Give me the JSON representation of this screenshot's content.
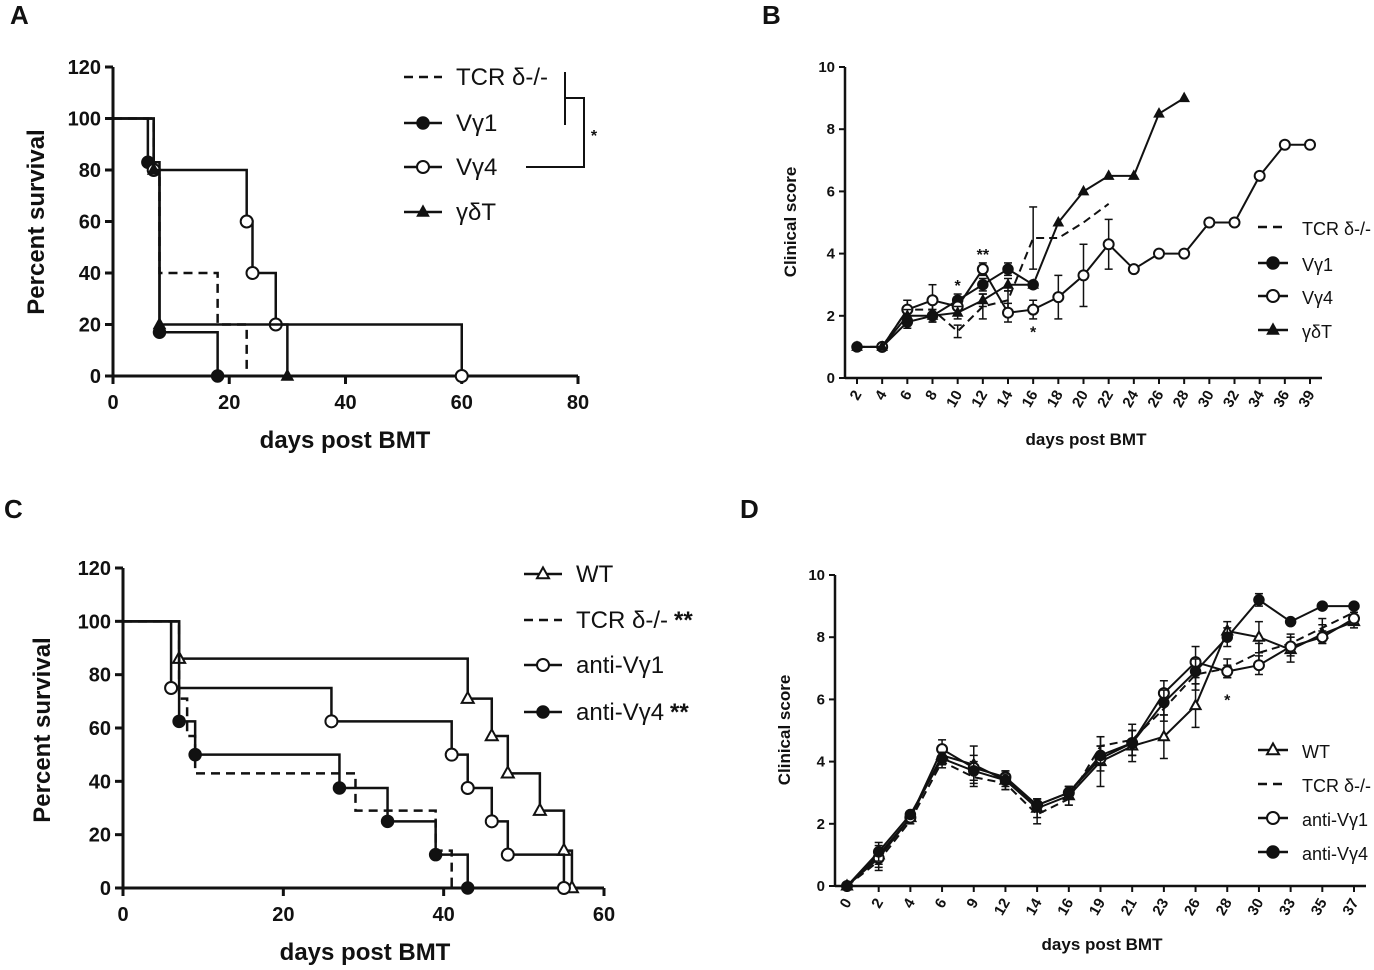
{
  "chart_data": [
    {
      "panel": "A",
      "type": "line",
      "subtype": "kaplan-meier",
      "xlabel": "days post BMT",
      "ylabel": "Percent survival",
      "xlim": [
        0,
        80
      ],
      "ylim": [
        0,
        120
      ],
      "xticks": [
        "0",
        "20",
        "40",
        "60",
        "80"
      ],
      "yticks": [
        "0",
        "20",
        "40",
        "60",
        "80",
        "100",
        "120"
      ],
      "legend": [
        "TCR δ-/-",
        "Vγ1",
        "Vγ4",
        "γδT"
      ],
      "significance": "*",
      "series": [
        {
          "name": "TCR δ-/-",
          "style": "dashed",
          "steps": [
            [
              0,
              100
            ],
            [
              7,
              100
            ],
            [
              7,
              80
            ],
            [
              8,
              80
            ],
            [
              8,
              40
            ],
            [
              18,
              40
            ],
            [
              18,
              20
            ],
            [
              23,
              20
            ],
            [
              23,
              0
            ],
            [
              30,
              0
            ]
          ]
        },
        {
          "name": "Vγ1",
          "style": "solid-filled-circle",
          "steps": [
            [
              0,
              100
            ],
            [
              6,
              100
            ],
            [
              6,
              83
            ],
            [
              8,
              83
            ],
            [
              8,
              17
            ],
            [
              18,
              17
            ],
            [
              18,
              0
            ],
            [
              20,
              0
            ]
          ],
          "markers": [
            [
              6,
              83
            ],
            [
              8,
              17
            ],
            [
              18,
              0
            ]
          ]
        },
        {
          "name": "Vγ4",
          "style": "solid-open-circle",
          "steps": [
            [
              0,
              100
            ],
            [
              7,
              100
            ],
            [
              7,
              80
            ],
            [
              23,
              80
            ],
            [
              23,
              60
            ],
            [
              24,
              60
            ],
            [
              24,
              40
            ],
            [
              28,
              40
            ],
            [
              28,
              20
            ],
            [
              60,
              20
            ],
            [
              60,
              0
            ]
          ],
          "markers": [
            [
              7,
              80
            ],
            [
              23,
              60
            ],
            [
              24,
              40
            ],
            [
              28,
              20
            ],
            [
              60,
              0
            ]
          ]
        },
        {
          "name": "γδT",
          "style": "solid-triangle",
          "steps": [
            [
              0,
              100
            ],
            [
              7,
              100
            ],
            [
              7,
              80
            ],
            [
              8,
              80
            ],
            [
              8,
              20
            ],
            [
              30,
              20
            ],
            [
              30,
              0
            ]
          ],
          "markers": [
            [
              7,
              80
            ],
            [
              8,
              20
            ],
            [
              30,
              0
            ]
          ]
        }
      ]
    },
    {
      "panel": "B",
      "type": "line",
      "xlabel": "days post BMT",
      "ylabel": "Clinical score",
      "ylim": [
        0,
        10
      ],
      "categories": [
        "2",
        "4",
        "6",
        "8",
        "10",
        "12",
        "14",
        "16",
        "18",
        "20",
        "22",
        "24",
        "26",
        "28",
        "30",
        "32",
        "34",
        "36",
        "39"
      ],
      "yticks": [
        "0",
        "2",
        "4",
        "6",
        "8",
        "10"
      ],
      "legend": [
        "TCR δ-/-",
        "Vγ1",
        "Vγ4",
        "γδT"
      ],
      "annotations": [
        {
          "text": "**",
          "category": "12",
          "y": 3.8
        },
        {
          "text": "*",
          "category": "10",
          "y": 2.8
        },
        {
          "text": "*",
          "category": "16",
          "y": 1.3
        }
      ],
      "series": [
        {
          "name": "TCR δ-/-",
          "style": "dashed",
          "values": [
            1,
            1,
            2.2,
            2.2,
            1.5,
            2.3,
            2.5,
            4.5,
            4.5,
            5,
            5.6,
            null,
            null,
            null,
            null,
            null,
            null,
            null,
            null
          ],
          "errors": [
            0,
            0,
            0.3,
            0.3,
            0.2,
            0.4,
            0.3,
            1,
            0,
            0,
            0,
            0,
            0,
            0,
            0,
            0,
            0,
            0,
            0
          ]
        },
        {
          "name": "Vγ1",
          "style": "filled-circle",
          "values": [
            1,
            1,
            1.8,
            2,
            2.5,
            3,
            3.5,
            3,
            null,
            null,
            null,
            null,
            null,
            null,
            null,
            null,
            null,
            null,
            null
          ],
          "errors": [
            0,
            0,
            0.2,
            0.2,
            0.2,
            0.2,
            0.2,
            0,
            0,
            0,
            0,
            0,
            0,
            0,
            0,
            0,
            0,
            0,
            0
          ]
        },
        {
          "name": "Vγ4",
          "style": "open-circle",
          "values": [
            null,
            1,
            2.2,
            2.5,
            2.3,
            3.5,
            2.1,
            2.2,
            2.6,
            3.3,
            4.3,
            3.5,
            4,
            4,
            5,
            5,
            6.5,
            7.5,
            7.5
          ],
          "errors": [
            0,
            0,
            0.3,
            0.5,
            0.3,
            0.2,
            0.3,
            0.3,
            0.7,
            1,
            0.8,
            0,
            0,
            0,
            0,
            0,
            0,
            0,
            0
          ]
        },
        {
          "name": "γδT",
          "style": "triangle",
          "values": [
            1,
            1,
            2,
            2,
            2.1,
            2.5,
            3,
            3,
            5,
            6,
            6.5,
            6.5,
            8.5,
            9,
            null,
            null,
            null,
            null,
            null
          ],
          "errors": [
            0,
            0,
            0.2,
            0.2,
            0.2,
            0.2,
            0.2,
            0,
            0,
            0,
            0,
            0,
            0,
            0,
            0,
            0,
            0,
            0,
            0
          ]
        }
      ]
    },
    {
      "panel": "C",
      "type": "line",
      "subtype": "kaplan-meier",
      "xlabel": "days post BMT",
      "ylabel": "Percent survival",
      "xlim": [
        0,
        60
      ],
      "ylim": [
        0,
        120
      ],
      "xticks": [
        "0",
        "20",
        "40",
        "60"
      ],
      "yticks": [
        "0",
        "20",
        "40",
        "60",
        "80",
        "100",
        "120"
      ],
      "legend": [
        "WT",
        "TCR δ-/-",
        "anti-Vγ1",
        "anti-Vγ4"
      ],
      "legend_annotations": [
        "",
        "**",
        "",
        "**"
      ],
      "series": [
        {
          "name": "WT",
          "style": "solid-open-triangle",
          "steps": [
            [
              0,
              100
            ],
            [
              7,
              100
            ],
            [
              7,
              86
            ],
            [
              43,
              86
            ],
            [
              43,
              71
            ],
            [
              46,
              71
            ],
            [
              46,
              57
            ],
            [
              48,
              57
            ],
            [
              48,
              43
            ],
            [
              52,
              43
            ],
            [
              52,
              29
            ],
            [
              55,
              29
            ],
            [
              55,
              14
            ],
            [
              56,
              14
            ],
            [
              56,
              0
            ]
          ],
          "markers": [
            [
              7,
              86
            ],
            [
              43,
              71
            ],
            [
              46,
              57
            ],
            [
              48,
              43
            ],
            [
              52,
              29
            ],
            [
              55,
              14
            ],
            [
              56,
              0
            ]
          ]
        },
        {
          "name": "TCR δ-/-",
          "style": "dashed",
          "steps": [
            [
              0,
              100
            ],
            [
              7,
              100
            ],
            [
              7,
              71
            ],
            [
              8,
              71
            ],
            [
              8,
              57
            ],
            [
              9,
              57
            ],
            [
              9,
              43
            ],
            [
              29,
              43
            ],
            [
              29,
              29
            ],
            [
              39,
              29
            ],
            [
              39,
              14
            ],
            [
              41,
              14
            ],
            [
              41,
              0
            ]
          ]
        },
        {
          "name": "anti-Vγ1",
          "style": "solid-open-circle",
          "steps": [
            [
              0,
              100
            ],
            [
              6,
              100
            ],
            [
              6,
              75
            ],
            [
              26,
              75
            ],
            [
              26,
              62.5
            ],
            [
              41,
              62.5
            ],
            [
              41,
              50
            ],
            [
              43,
              50
            ],
            [
              43,
              37.5
            ],
            [
              46,
              37.5
            ],
            [
              46,
              25
            ],
            [
              48,
              25
            ],
            [
              48,
              12.5
            ],
            [
              55,
              12.5
            ],
            [
              55,
              0
            ]
          ],
          "markers": [
            [
              6,
              75
            ],
            [
              26,
              62.5
            ],
            [
              41,
              50
            ],
            [
              43,
              37.5
            ],
            [
              46,
              25
            ],
            [
              48,
              12.5
            ],
            [
              55,
              0
            ]
          ]
        },
        {
          "name": "anti-Vγ4",
          "style": "solid-filled-circle",
          "steps": [
            [
              0,
              100
            ],
            [
              7,
              100
            ],
            [
              7,
              62.5
            ],
            [
              9,
              62.5
            ],
            [
              9,
              50
            ],
            [
              27,
              50
            ],
            [
              27,
              37.5
            ],
            [
              33,
              37.5
            ],
            [
              33,
              25
            ],
            [
              39,
              25
            ],
            [
              39,
              12.5
            ],
            [
              43,
              12.5
            ],
            [
              43,
              0
            ]
          ],
          "markers": [
            [
              7,
              62.5
            ],
            [
              9,
              50
            ],
            [
              27,
              37.5
            ],
            [
              33,
              25
            ],
            [
              39,
              12.5
            ],
            [
              43,
              0
            ]
          ]
        }
      ]
    },
    {
      "panel": "D",
      "type": "line",
      "xlabel": "days post BMT",
      "ylabel": "Clinical score",
      "ylim": [
        0,
        10
      ],
      "categories": [
        "0",
        "2",
        "4",
        "6",
        "9",
        "12",
        "14",
        "16",
        "19",
        "21",
        "23",
        "26",
        "28",
        "30",
        "33",
        "35",
        "37"
      ],
      "yticks": [
        "0",
        "2",
        "4",
        "6",
        "8",
        "10"
      ],
      "legend": [
        "WT",
        "TCR δ-/-",
        "anti-Vγ1",
        "anti-Vγ4"
      ],
      "annotations": [
        {
          "text": "*",
          "category": "28",
          "y": 5.8
        }
      ],
      "series": [
        {
          "name": "WT",
          "style": "open-triangle",
          "values": [
            0,
            1.0,
            2.2,
            4.2,
            3.9,
            3.4,
            2.5,
            2.9,
            4.0,
            4.5,
            4.8,
            5.8,
            8.2,
            8.0,
            7.6,
            8.1,
            8.5
          ],
          "errors": [
            0,
            0.3,
            0.1,
            0.3,
            0.6,
            0.3,
            0.3,
            0.3,
            0.8,
            0.5,
            0.7,
            0.7,
            0.3,
            0.5,
            0.4,
            0.3,
            0.2
          ]
        },
        {
          "name": "TCR δ-/-",
          "style": "dashed",
          "values": [
            0,
            0.8,
            2.1,
            4.0,
            3.5,
            3.3,
            2.3,
            2.8,
            4.5,
            4.7,
            5.7,
            6.8,
            7.0,
            7.5,
            7.8,
            8.3,
            8.8
          ],
          "errors": [
            0,
            0.3,
            0.1,
            0.2,
            0.3,
            0.2,
            0.3,
            0.2,
            0.3,
            0.5,
            0.4,
            0.5,
            0.3,
            0.3,
            0.3,
            0.3,
            0.2
          ]
        },
        {
          "name": "anti-Vγ1",
          "style": "open-circle",
          "values": [
            0,
            0.9,
            2.2,
            4.4,
            3.8,
            3.5,
            2.6,
            3.0,
            4.1,
            4.6,
            6.2,
            7.2,
            6.9,
            7.1,
            7.7,
            8.0,
            8.6
          ],
          "errors": [
            0,
            0.3,
            0.1,
            0.3,
            0.4,
            0.2,
            0.2,
            0.2,
            0.4,
            0.4,
            0.4,
            0.5,
            0.2,
            0.3,
            0.3,
            0.2,
            0.2
          ]
        },
        {
          "name": "anti-Vγ4",
          "style": "filled-circle",
          "values": [
            0,
            1.1,
            2.3,
            4.1,
            3.7,
            3.4,
            2.6,
            3.0,
            4.2,
            4.6,
            5.9,
            6.9,
            8.0,
            9.2,
            8.5,
            9.0,
            9.0
          ],
          "errors": [
            0,
            0.3,
            0.1,
            0.2,
            0.3,
            0.2,
            0.2,
            0.2,
            0.3,
            0.4,
            0.4,
            0.4,
            0.3,
            0.2,
            0.1,
            0.1,
            0.1
          ]
        }
      ]
    }
  ]
}
